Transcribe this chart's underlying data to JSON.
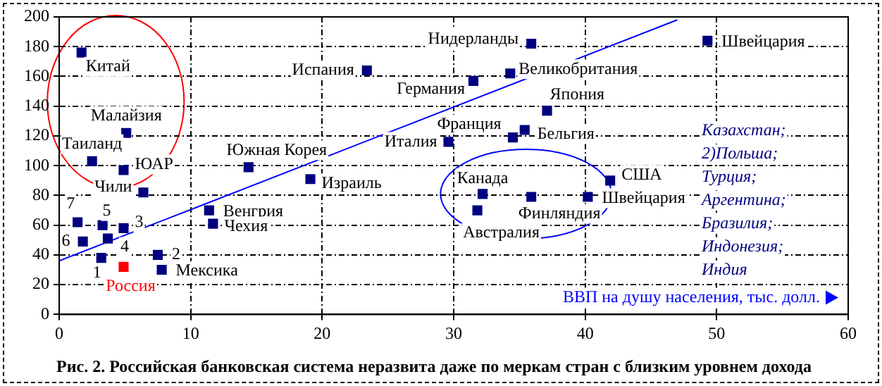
{
  "chart_data": {
    "type": "scatter",
    "title": "Рис. 2. Российская банковская система неразвита даже по меркам стран с близким уровнем дохода",
    "xlabel": "ВВП на душу населения, тыс. долл.",
    "xlim": [
      0,
      60
    ],
    "xticks": [
      0,
      10,
      20,
      30,
      40,
      50,
      60
    ],
    "ylim": [
      0,
      200
    ],
    "yticks": [
      0,
      20,
      40,
      60,
      80,
      100,
      120,
      140,
      160,
      180,
      200
    ],
    "grid": true,
    "marker": "square",
    "legend": false,
    "series": [
      {
        "x": [
          1.7,
          5.1,
          2.5,
          4.9,
          6.4,
          1.4,
          3.3,
          4.9,
          1.8,
          3.7,
          3.2,
          4.9,
          7.5,
          7.8,
          11.4,
          11.7,
          14.4,
          19.1,
          23.4,
          35.9,
          34.3,
          31.5,
          37.1,
          34.5,
          35.4,
          29.6,
          32.2,
          35.9,
          40.2,
          41.9,
          31.8,
          49.3
        ],
        "values": [
          176,
          122,
          103,
          97,
          82,
          62,
          60,
          58,
          49,
          51,
          38,
          32,
          40,
          30,
          70,
          61,
          99,
          91,
          164,
          182,
          162,
          157,
          137,
          119,
          124,
          116,
          81,
          79,
          79,
          90,
          70,
          184
        ],
        "colors": [
          "#000080",
          "#000080",
          "#000080",
          "#000080",
          "#000080",
          "#000080",
          "#000080",
          "#000080",
          "#000080",
          "#000080",
          "#000080",
          "#ff0000",
          "#000080",
          "#000080",
          "#000080",
          "#000080",
          "#000080",
          "#000080",
          "#000080",
          "#000080",
          "#000080",
          "#000080",
          "#000080",
          "#000080",
          "#000080",
          "#000080",
          "#000080",
          "#000080",
          "#000080",
          "#000080",
          "#000080",
          "#000080"
        ]
      },
      {
        "type": "line",
        "x": [
          0,
          47
        ],
        "values": [
          36,
          198
        ],
        "color": "#0000ff",
        "marker": "none"
      }
    ],
    "annotations": [
      {
        "text": "Китай",
        "x": 1.7,
        "y": 176
      },
      {
        "text": "Малайзия",
        "x": 5.1,
        "y": 122
      },
      {
        "text": "Таиланд",
        "x": 2.5,
        "y": 103
      },
      {
        "text": "ЮАР",
        "x": 4.9,
        "y": 97
      },
      {
        "text": "Чили",
        "x": 6.4,
        "y": 82
      },
      {
        "text": "7",
        "x": 1.4,
        "y": 62
      },
      {
        "text": "5",
        "x": 3.3,
        "y": 60
      },
      {
        "text": "3",
        "x": 4.9,
        "y": 58
      },
      {
        "text": "6",
        "x": 1.8,
        "y": 49
      },
      {
        "text": "4",
        "x": 3.7,
        "y": 51
      },
      {
        "text": "1",
        "x": 3.2,
        "y": 38
      },
      {
        "text": "Россия",
        "x": 4.9,
        "y": 32
      },
      {
        "text": "2",
        "x": 7.5,
        "y": 40
      },
      {
        "text": "Мексика",
        "x": 7.8,
        "y": 30
      },
      {
        "text": "Венгрия",
        "x": 11.4,
        "y": 70
      },
      {
        "text": "Чехия",
        "x": 11.7,
        "y": 61
      },
      {
        "text": "Южная Корея",
        "x": 14.4,
        "y": 99
      },
      {
        "text": "Израиль",
        "x": 19.1,
        "y": 91
      },
      {
        "text": "Испания",
        "x": 23.4,
        "y": 164
      },
      {
        "text": "Нидерланды",
        "x": 35.9,
        "y": 182
      },
      {
        "text": "Великобритания",
        "x": 34.3,
        "y": 162
      },
      {
        "text": "Германия",
        "x": 31.5,
        "y": 157
      },
      {
        "text": "Япония",
        "x": 37.1,
        "y": 137
      },
      {
        "text": "Франция",
        "x": 34.5,
        "y": 119
      },
      {
        "text": "Бельгия",
        "x": 35.4,
        "y": 124
      },
      {
        "text": "Италия",
        "x": 29.6,
        "y": 116
      },
      {
        "text": "Канада",
        "x": 32.2,
        "y": 81
      },
      {
        "text": "Финляндия",
        "x": 35.9,
        "y": 79
      },
      {
        "text": "Швейцария",
        "x": 40.2,
        "y": 79
      },
      {
        "text": "США",
        "x": 41.9,
        "y": 90
      },
      {
        "text": "Австралия",
        "x": 31.8,
        "y": 70
      },
      {
        "text": "Швейцария",
        "x": 49.3,
        "y": 184
      },
      "Казахстан;",
      "2)Польша;",
      "Турция;",
      "Аргентина;",
      "Бразилия;",
      "Индонезия;",
      "Индия"
    ]
  }
}
